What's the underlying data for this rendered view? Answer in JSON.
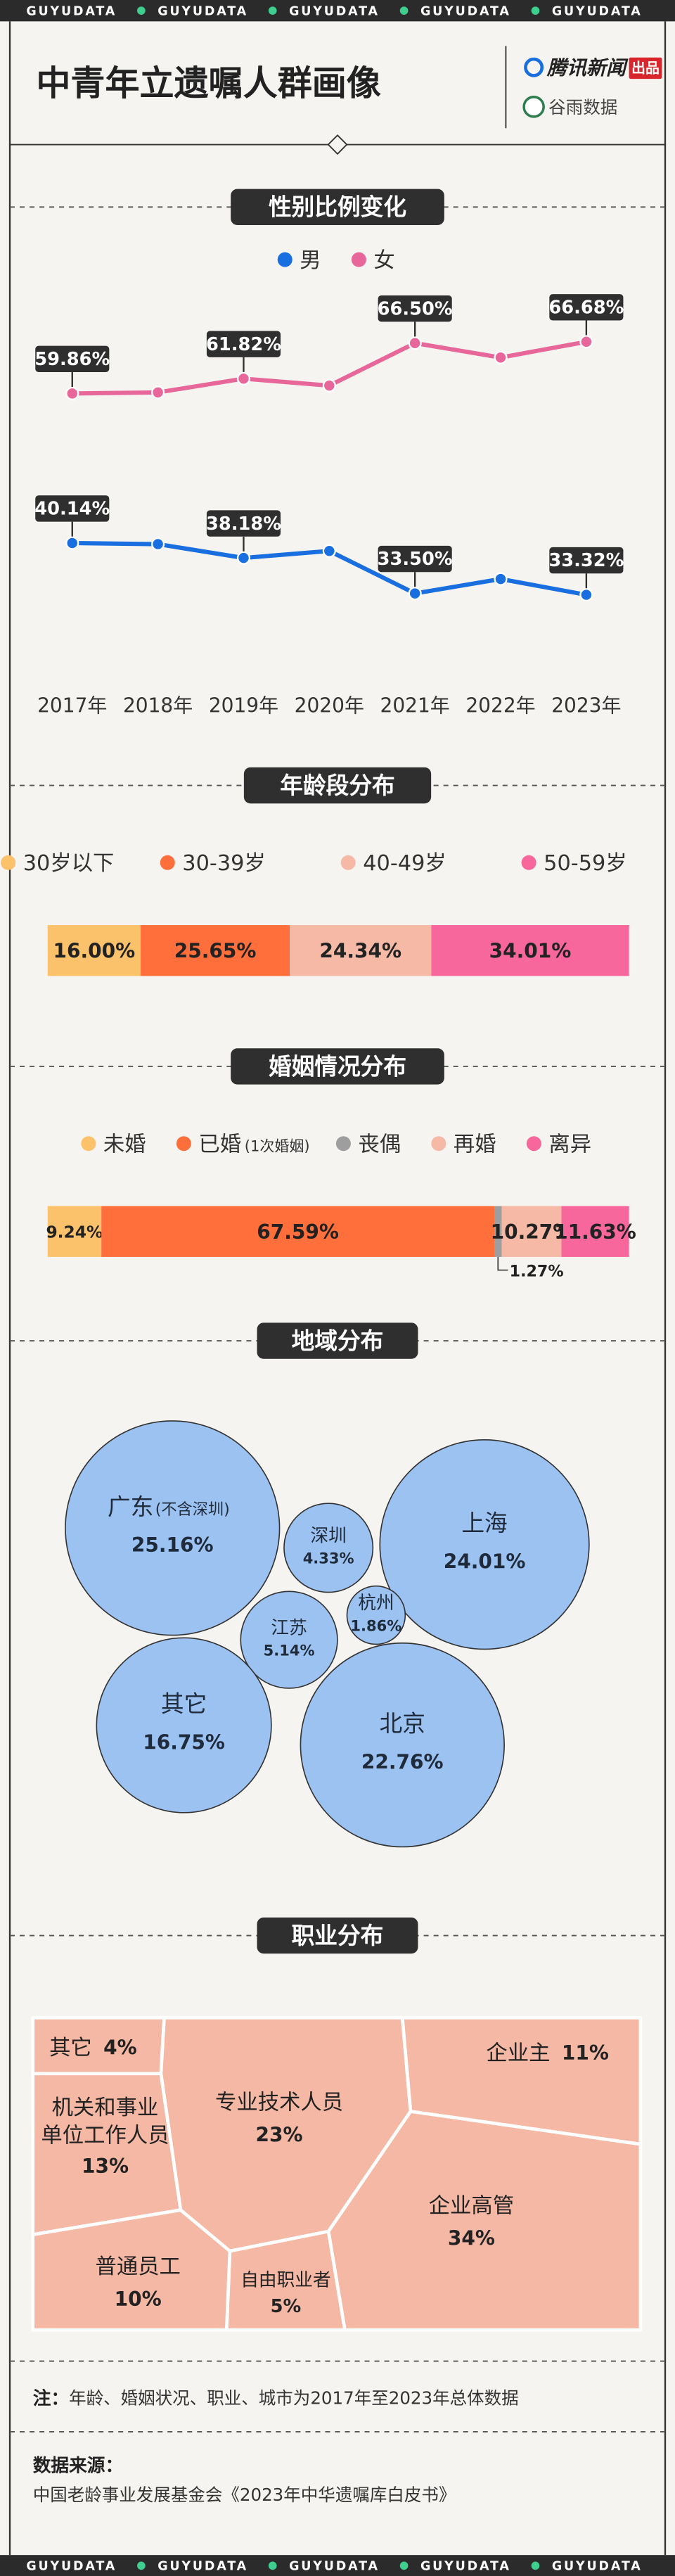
{
  "banner": "GUYUDATA",
  "header": {
    "title": "中青年立遗嘱人群画像",
    "publisher": "腾讯新闻",
    "publisher_tag": "出品",
    "partner": "谷雨数据"
  },
  "chart_data": [
    {
      "type": "line",
      "title": "性别比例变化",
      "categories": [
        "2017年",
        "2018年",
        "2019年",
        "2020年",
        "2021年",
        "2022年",
        "2023年"
      ],
      "series": [
        {
          "name": "男",
          "color": "#1a6fe0",
          "values": [
            40.14,
            40.0,
            38.18,
            39.1,
            33.5,
            35.4,
            33.32
          ],
          "value_labels": [
            "40.14%",
            null,
            "38.18%",
            null,
            "33.50%",
            null,
            "33.32%"
          ]
        },
        {
          "name": "女",
          "color": "#e8679a",
          "values": [
            59.86,
            60.0,
            61.82,
            60.9,
            66.5,
            64.6,
            66.68
          ],
          "value_labels": [
            "59.86%",
            null,
            "61.82%",
            null,
            "66.50%",
            null,
            "66.68%"
          ]
        }
      ]
    },
    {
      "type": "stacked_bar",
      "title": "年龄段分布",
      "series": [
        {
          "name": "30岁以下",
          "color": "#fbc26b",
          "values": [
            16.0
          ],
          "value_labels": [
            "16.00%"
          ]
        },
        {
          "name": "30-39岁",
          "color": "#ff6f3c",
          "values": [
            25.65
          ],
          "value_labels": [
            "25.65%"
          ]
        },
        {
          "name": "40-49岁",
          "color": "#f6b9a6",
          "values": [
            24.34
          ],
          "value_labels": [
            "24.34%"
          ]
        },
        {
          "name": "50-59岁",
          "color": "#f7679b",
          "values": [
            34.01
          ],
          "value_labels": [
            "34.01%"
          ]
        }
      ]
    },
    {
      "type": "stacked_bar",
      "title": "婚姻情况分布",
      "series": [
        {
          "name": "未婚",
          "color": "#fbc26b",
          "values": [
            9.24
          ],
          "value_labels": [
            "9.24%"
          ]
        },
        {
          "name": "已婚",
          "note": "(1次婚姻)",
          "color": "#ff6f3c",
          "values": [
            67.59
          ],
          "value_labels": [
            "67.59%"
          ]
        },
        {
          "name": "丧偶",
          "color": "#9e9e9e",
          "values": [
            1.27
          ],
          "value_labels": [
            "1.27%"
          ]
        },
        {
          "name": "再婚",
          "color": "#f6b9a6",
          "values": [
            10.27
          ],
          "value_labels": [
            "10.27%"
          ]
        },
        {
          "name": "离异",
          "color": "#f7679b",
          "values": [
            11.63
          ],
          "value_labels": [
            "11.63%"
          ]
        }
      ]
    },
    {
      "type": "bubble",
      "title": "地域分布",
      "color": "#9cc2f2",
      "categories": [
        "广东",
        "上海",
        "深圳",
        "江苏",
        "杭州",
        "其它",
        "北京"
      ],
      "category_notes": [
        "(不含深圳)",
        null,
        null,
        null,
        null,
        null,
        null
      ],
      "values": [
        25.16,
        24.01,
        4.33,
        5.14,
        1.86,
        16.75,
        22.76
      ],
      "value_labels": [
        "25.16%",
        "24.01%",
        "4.33%",
        "5.14%",
        "1.86%",
        "16.75%",
        "22.76%"
      ]
    },
    {
      "type": "treemap",
      "title": "职业分布",
      "color": "#f4b8a5",
      "categories": [
        "其它",
        "机关和事业单位工作人员",
        "普通员工",
        "自由职业者",
        "专业技术人员",
        "企业主",
        "企业高管"
      ],
      "values": [
        4,
        13,
        10,
        5,
        23,
        11,
        34
      ],
      "value_labels": [
        "4%",
        "13%",
        "10%",
        "5%",
        "23%",
        "11%",
        "34%"
      ]
    }
  ],
  "note": {
    "label": "注：",
    "text": "年龄、婚姻状况、职业、城市为2017年至2023年总体数据"
  },
  "source": {
    "label": "数据来源：",
    "text": "中国老龄事业发展基金会《2023年中华遗嘱库白皮书》"
  }
}
